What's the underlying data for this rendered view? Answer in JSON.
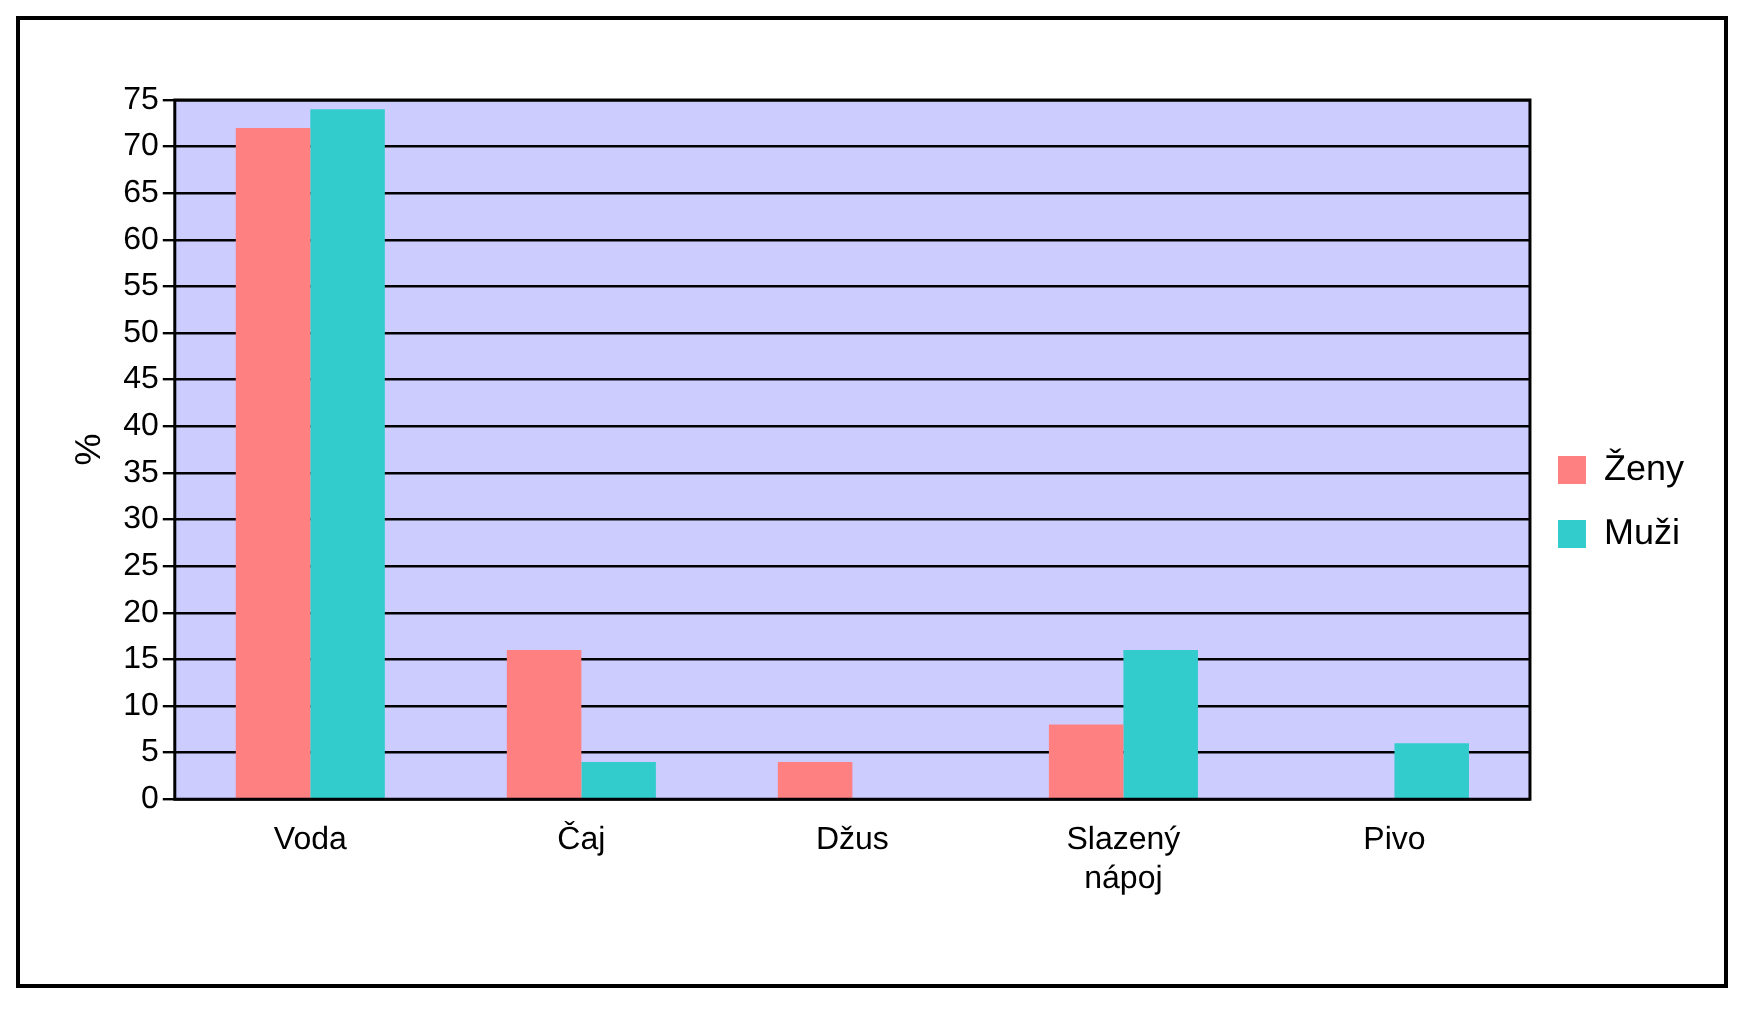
{
  "chart_data": {
    "type": "bar",
    "ylabel": "%",
    "categories": [
      "Voda",
      "Čaj",
      "Džus",
      "Slazený nápoj",
      "Pivo"
    ],
    "series": [
      {
        "name": "Ženy",
        "color": "#ff8080",
        "values": [
          72,
          16,
          4,
          8,
          0
        ]
      },
      {
        "name": "Muži",
        "color": "#33cccc",
        "values": [
          74,
          4,
          0,
          16,
          6
        ]
      }
    ],
    "ylim": [
      0,
      75
    ],
    "yticks": [
      0,
      5,
      10,
      15,
      20,
      25,
      30,
      35,
      40,
      45,
      50,
      55,
      60,
      65,
      70,
      75
    ],
    "grid": "y",
    "legend": "right"
  }
}
